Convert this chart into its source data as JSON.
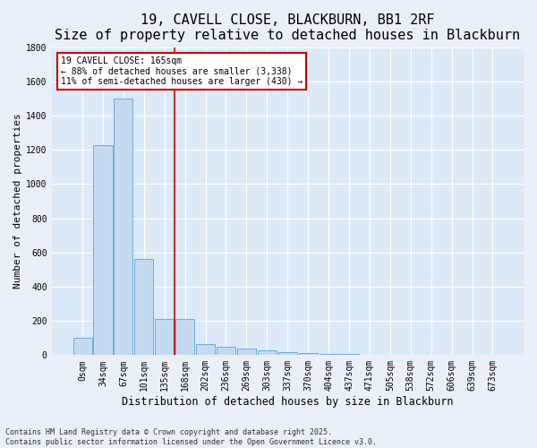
{
  "title": "19, CAVELL CLOSE, BLACKBURN, BB1 2RF",
  "subtitle": "Size of property relative to detached houses in Blackburn",
  "xlabel": "Distribution of detached houses by size in Blackburn",
  "ylabel": "Number of detached properties",
  "categories": [
    "0sqm",
    "34sqm",
    "67sqm",
    "101sqm",
    "135sqm",
    "168sqm",
    "202sqm",
    "236sqm",
    "269sqm",
    "303sqm",
    "337sqm",
    "370sqm",
    "404sqm",
    "437sqm",
    "471sqm",
    "505sqm",
    "538sqm",
    "572sqm",
    "606sqm",
    "639sqm",
    "673sqm"
  ],
  "values": [
    100,
    1230,
    1500,
    560,
    210,
    210,
    65,
    48,
    38,
    28,
    18,
    10,
    8,
    5,
    3,
    2,
    1,
    1,
    0,
    0,
    0
  ],
  "bar_color": "#c5d9f0",
  "bar_edge_color": "#6baed6",
  "plot_bg_color": "#dce9f7",
  "fig_bg_color": "#eaf0f8",
  "grid_color": "#ffffff",
  "vline_x": 4.5,
  "vline_color": "#cc0000",
  "annotation_text": "19 CAVELL CLOSE: 165sqm\n← 88% of detached houses are smaller (3,338)\n11% of semi-detached houses are larger (430) →",
  "annotation_box_edgecolor": "#cc0000",
  "ylim": [
    0,
    1800
  ],
  "yticks": [
    0,
    200,
    400,
    600,
    800,
    1000,
    1200,
    1400,
    1600,
    1800
  ],
  "footnote_line1": "Contains HM Land Registry data © Crown copyright and database right 2025.",
  "footnote_line2": "Contains public sector information licensed under the Open Government Licence v3.0.",
  "title_fontsize": 11,
  "subtitle_fontsize": 9.5,
  "label_fontsize": 8.5,
  "ylabel_fontsize": 8,
  "tick_fontsize": 7,
  "ann_fontsize": 7,
  "footnote_fontsize": 6
}
